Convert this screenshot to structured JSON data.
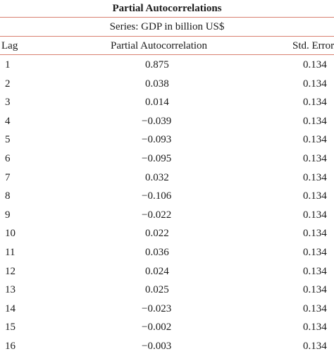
{
  "table": {
    "title": "Partial Autocorrelations",
    "series_label": "Series: GDP in billion US$",
    "columns": [
      "Lag",
      "Partial Autocorrelation",
      "Std. Error"
    ],
    "rows": [
      {
        "lag": "1",
        "pac": "0.875",
        "se": "0.134"
      },
      {
        "lag": "2",
        "pac": "0.038",
        "se": "0.134"
      },
      {
        "lag": "3",
        "pac": "0.014",
        "se": "0.134"
      },
      {
        "lag": "4",
        "pac": "−0.039",
        "se": "0.134"
      },
      {
        "lag": "5",
        "pac": "−0.093",
        "se": "0.134"
      },
      {
        "lag": "6",
        "pac": "−0.095",
        "se": "0.134"
      },
      {
        "lag": "7",
        "pac": "0.032",
        "se": "0.134"
      },
      {
        "lag": "8",
        "pac": "−0.106",
        "se": "0.134"
      },
      {
        "lag": "9",
        "pac": "−0.022",
        "se": "0.134"
      },
      {
        "lag": "10",
        "pac": "0.022",
        "se": "0.134"
      },
      {
        "lag": "11",
        "pac": "0.036",
        "se": "0.134"
      },
      {
        "lag": "12",
        "pac": "0.024",
        "se": "0.134"
      },
      {
        "lag": "13",
        "pac": "0.025",
        "se": "0.134"
      },
      {
        "lag": "14",
        "pac": "−0.023",
        "se": "0.134"
      },
      {
        "lag": "15",
        "pac": "−0.002",
        "se": "0.134"
      },
      {
        "lag": "16",
        "pac": "−0.003",
        "se": "0.134"
      }
    ]
  },
  "colors": {
    "rule": "#d98070",
    "text": "#1a1a1a"
  }
}
